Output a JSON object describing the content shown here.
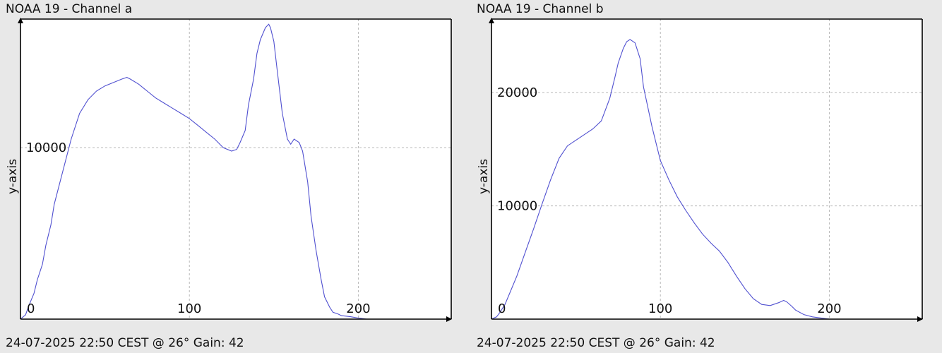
{
  "chart_data": [
    {
      "type": "line",
      "title": "NOAA 19 - Channel a",
      "footer": "24-07-2025 22:50 CEST @ 26° Gain: 42",
      "xlabel": "",
      "ylabel": "y-axis",
      "xlim": [
        0,
        255
      ],
      "ylim": [
        0,
        17500
      ],
      "x_ticks": [
        0,
        100,
        200
      ],
      "y_ticks": [
        10000
      ],
      "grid": true,
      "legend": "none",
      "color": "#5050d0",
      "series": [
        {
          "x": [
            0,
            3,
            5,
            8,
            10,
            13,
            15,
            18,
            20,
            25,
            30,
            35,
            40,
            45,
            50,
            55,
            60,
            63,
            65,
            70,
            75,
            80,
            85,
            90,
            95,
            100,
            105,
            110,
            115,
            120,
            125,
            128,
            130,
            133,
            135,
            138,
            140,
            142,
            145,
            147,
            148,
            150,
            152,
            155,
            158,
            160,
            162,
            165,
            167,
            170,
            172,
            175,
            178,
            180,
            183,
            185,
            188,
            190,
            195,
            200,
            205
          ],
          "y": [
            0,
            250,
            800,
            1500,
            2300,
            3200,
            4300,
            5500,
            6700,
            8600,
            10500,
            12000,
            12800,
            13300,
            13600,
            13800,
            14000,
            14100,
            14000,
            13700,
            13300,
            12900,
            12600,
            12300,
            12000,
            11700,
            11300,
            10900,
            10500,
            10000,
            9800,
            9900,
            10300,
            11000,
            12500,
            14000,
            15500,
            16300,
            17000,
            17200,
            17000,
            16200,
            14500,
            12000,
            10500,
            10200,
            10500,
            10300,
            9800,
            8000,
            6000,
            4000,
            2300,
            1300,
            700,
            400,
            300,
            200,
            150,
            60,
            0
          ]
        }
      ]
    },
    {
      "type": "line",
      "title": "NOAA 19 - Channel b",
      "footer": "24-07-2025 22:50 CEST @ 26° Gain: 42",
      "xlabel": "",
      "ylabel": "y-axis",
      "xlim": [
        0,
        255
      ],
      "ylim": [
        0,
        26500
      ],
      "x_ticks": [
        0,
        100,
        200
      ],
      "y_ticks": [
        10000,
        20000
      ],
      "grid": true,
      "legend": "none",
      "color": "#5050d0",
      "series": [
        {
          "x": [
            0,
            3,
            5,
            8,
            10,
            15,
            20,
            25,
            30,
            35,
            40,
            45,
            50,
            55,
            60,
            65,
            70,
            73,
            75,
            78,
            80,
            82,
            85,
            88,
            90,
            95,
            100,
            105,
            110,
            115,
            120,
            125,
            130,
            135,
            140,
            145,
            150,
            155,
            160,
            165,
            170,
            173,
            175,
            178,
            180,
            185,
            190,
            195,
            200
          ],
          "y": [
            0,
            200,
            600,
            1300,
            2000,
            3800,
            5900,
            8000,
            10200,
            12300,
            14200,
            15300,
            15800,
            16300,
            16800,
            17500,
            19500,
            21300,
            22600,
            23900,
            24500,
            24700,
            24400,
            23000,
            20500,
            17000,
            14000,
            12300,
            10800,
            9600,
            8500,
            7500,
            6700,
            6000,
            5000,
            3800,
            2700,
            1800,
            1300,
            1200,
            1450,
            1650,
            1500,
            1100,
            800,
            400,
            200,
            100,
            0
          ]
        }
      ]
    }
  ]
}
